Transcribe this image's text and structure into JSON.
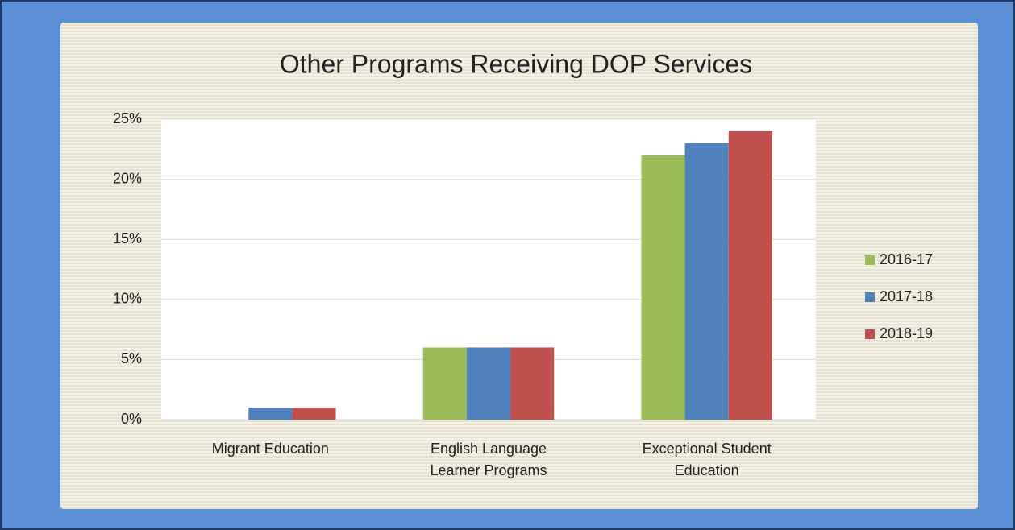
{
  "chart_data": {
    "type": "bar",
    "title": "Other Programs Receiving DOP Services",
    "categories": [
      "Migrant Education",
      "English Language Learner Programs",
      "Exceptional Student Education"
    ],
    "series": [
      {
        "name": "2016-17",
        "color": "#9bbb59",
        "values": [
          0,
          6,
          22
        ]
      },
      {
        "name": "2017-18",
        "color": "#4f81bd",
        "values": [
          1,
          6,
          23
        ]
      },
      {
        "name": "2018-19",
        "color": "#c0504d",
        "values": [
          1,
          6,
          24
        ]
      }
    ],
    "ylim": [
      0,
      25
    ],
    "yticks": [
      {
        "value": 0,
        "label": "0%"
      },
      {
        "value": 5,
        "label": "5%"
      },
      {
        "value": 10,
        "label": "10%"
      },
      {
        "value": 15,
        "label": "15%"
      },
      {
        "value": 20,
        "label": "20%"
      },
      {
        "value": 25,
        "label": "25%"
      }
    ],
    "grid": true,
    "legend": "right"
  }
}
